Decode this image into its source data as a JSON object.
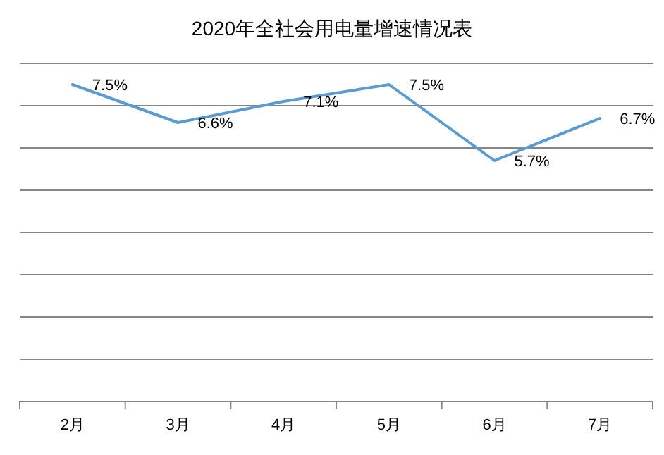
{
  "chart_data": {
    "type": "line",
    "title": "2020年全社会用电量增速情况表",
    "categories": [
      "2月",
      "3月",
      "4月",
      "5月",
      "6月",
      "7月"
    ],
    "series": [
      {
        "color": "#5b9bd5",
        "values": [
          7.5,
          6.6,
          7.1,
          7.5,
          5.7,
          6.7
        ],
        "value_labels": [
          "7.5%",
          "6.6%",
          "7.1%",
          "7.5%",
          "5.7%",
          "6.7%"
        ]
      }
    ],
    "ylim": [
      0,
      8
    ],
    "yticks": [
      {
        "value": 0,
        "label": null
      },
      {
        "value": 1,
        "label": null
      },
      {
        "value": 2,
        "label": null
      },
      {
        "value": 3,
        "label": null
      },
      {
        "value": 4,
        "label": null
      },
      {
        "value": 5,
        "label": null
      },
      {
        "value": 6,
        "label": null
      },
      {
        "value": 7,
        "label": null
      },
      {
        "value": 8,
        "label": null
      }
    ],
    "grid": "y",
    "marker": "none",
    "line_style": "solid"
  }
}
